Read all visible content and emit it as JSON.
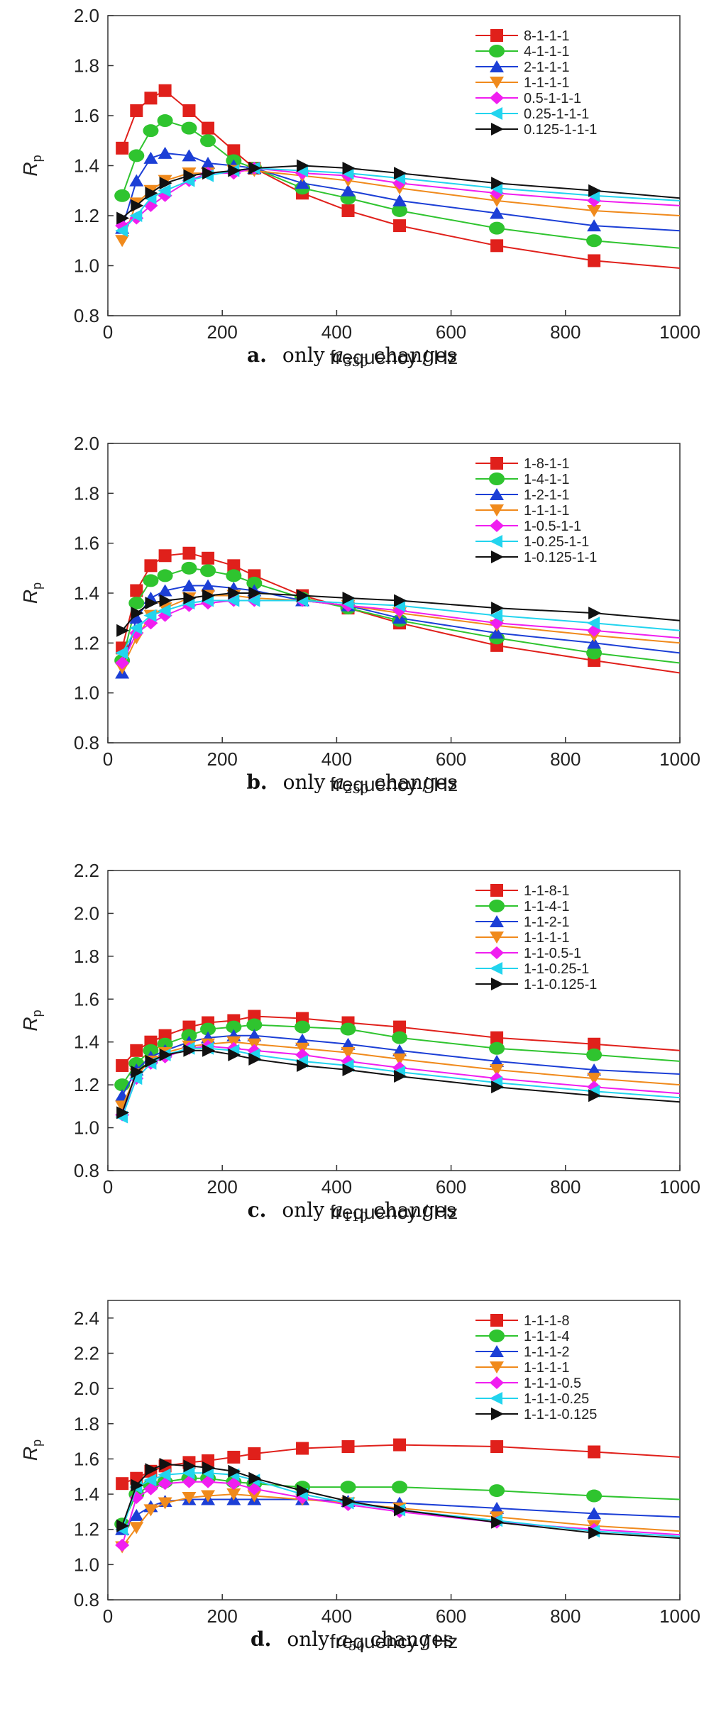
{
  "chart_data": [
    {
      "type": "line",
      "caption": {
        "letter": "a.",
        "prefix": "only",
        "var": "a",
        "sub": "330",
        "suffix": "changes"
      },
      "xlabel": "frequency / Hz",
      "ylabel": {
        "main": "R",
        "sub": "p"
      },
      "xlim": [
        0,
        1000
      ],
      "ylim": [
        0.8,
        2.0
      ],
      "xticks": [
        "0",
        "200",
        "400",
        "600",
        "800",
        "1000"
      ],
      "yticks": [
        "0.8",
        "1.0",
        "1.2",
        "1.4",
        "1.6",
        "1.8",
        "2.0"
      ],
      "grid": false,
      "legend_position": "top-right",
      "x": [
        25,
        50,
        75,
        100,
        142,
        175,
        220,
        256,
        340,
        420,
        510,
        680,
        850,
        1000
      ],
      "series": [
        {
          "name": "8-1-1-1",
          "color": "#e0201b",
          "marker": "square",
          "values": [
            1.47,
            1.62,
            1.67,
            1.7,
            1.62,
            1.55,
            1.46,
            1.39,
            1.29,
            1.22,
            1.16,
            1.08,
            1.02,
            0.99
          ]
        },
        {
          "name": "4-1-1-1",
          "color": "#2fc42f",
          "marker": "circle",
          "values": [
            1.28,
            1.44,
            1.54,
            1.58,
            1.55,
            1.5,
            1.42,
            1.39,
            1.31,
            1.27,
            1.22,
            1.15,
            1.1,
            1.07
          ]
        },
        {
          "name": "2-1-1-1",
          "color": "#1c3fd6",
          "marker": "triangle-up",
          "values": [
            1.15,
            1.34,
            1.43,
            1.45,
            1.44,
            1.41,
            1.4,
            1.39,
            1.33,
            1.3,
            1.26,
            1.21,
            1.16,
            1.14
          ]
        },
        {
          "name": "1-1-1-1",
          "color": "#f08a1c",
          "marker": "triangle-down",
          "values": [
            1.1,
            1.25,
            1.3,
            1.34,
            1.37,
            1.37,
            1.38,
            1.38,
            1.36,
            1.34,
            1.31,
            1.26,
            1.22,
            1.2
          ]
        },
        {
          "name": "0.5-1-1-1",
          "color": "#f01ef0",
          "marker": "diamond",
          "values": [
            1.16,
            1.19,
            1.24,
            1.28,
            1.34,
            1.37,
            1.37,
            1.39,
            1.37,
            1.36,
            1.33,
            1.29,
            1.26,
            1.24
          ]
        },
        {
          "name": "0.25-1-1-1",
          "color": "#22d4ee",
          "marker": "triangle-left",
          "values": [
            1.14,
            1.2,
            1.27,
            1.3,
            1.34,
            1.36,
            1.38,
            1.39,
            1.38,
            1.37,
            1.35,
            1.31,
            1.28,
            1.26
          ]
        },
        {
          "name": "0.125-1-1-1",
          "color": "#111111",
          "marker": "triangle-right",
          "values": [
            1.19,
            1.24,
            1.29,
            1.33,
            1.36,
            1.37,
            1.38,
            1.39,
            1.4,
            1.39,
            1.37,
            1.33,
            1.3,
            1.27
          ]
        }
      ]
    },
    {
      "type": "line",
      "caption": {
        "letter": "b.",
        "prefix": "only",
        "var": "a",
        "sub": "250",
        "suffix": "changes"
      },
      "xlabel": "frequency / Hz",
      "ylabel": {
        "main": "R",
        "sub": "p"
      },
      "xlim": [
        0,
        1000
      ],
      "ylim": [
        0.8,
        2.0
      ],
      "xticks": [
        "0",
        "200",
        "400",
        "600",
        "800",
        "1000"
      ],
      "yticks": [
        "0.8",
        "1.0",
        "1.2",
        "1.4",
        "1.6",
        "1.8",
        "2.0"
      ],
      "grid": false,
      "legend_position": "top-right",
      "x": [
        25,
        50,
        75,
        100,
        142,
        175,
        220,
        256,
        340,
        420,
        510,
        680,
        850,
        1000
      ],
      "series": [
        {
          "name": "1-8-1-1",
          "color": "#e0201b",
          "marker": "square",
          "values": [
            1.18,
            1.41,
            1.51,
            1.55,
            1.56,
            1.54,
            1.51,
            1.47,
            1.39,
            1.34,
            1.28,
            1.19,
            1.13,
            1.08
          ]
        },
        {
          "name": "1-4-1-1",
          "color": "#2fc42f",
          "marker": "circle",
          "values": [
            1.13,
            1.36,
            1.45,
            1.47,
            1.5,
            1.49,
            1.47,
            1.44,
            1.38,
            1.34,
            1.29,
            1.22,
            1.16,
            1.12
          ]
        },
        {
          "name": "1-2-1-1",
          "color": "#1c3fd6",
          "marker": "triangle-up",
          "values": [
            1.08,
            1.3,
            1.38,
            1.41,
            1.43,
            1.43,
            1.42,
            1.41,
            1.37,
            1.35,
            1.3,
            1.24,
            1.2,
            1.16
          ]
        },
        {
          "name": "1-1-1-1",
          "color": "#f08a1c",
          "marker": "triangle-down",
          "values": [
            1.1,
            1.22,
            1.31,
            1.34,
            1.38,
            1.39,
            1.39,
            1.38,
            1.37,
            1.35,
            1.32,
            1.27,
            1.23,
            1.2
          ]
        },
        {
          "name": "1-0.5-1-1",
          "color": "#f01ef0",
          "marker": "diamond",
          "values": [
            1.12,
            1.24,
            1.28,
            1.31,
            1.35,
            1.36,
            1.37,
            1.37,
            1.37,
            1.35,
            1.33,
            1.28,
            1.25,
            1.22
          ]
        },
        {
          "name": "1-0.25-1-1",
          "color": "#22d4ee",
          "marker": "triangle-left",
          "values": [
            1.16,
            1.26,
            1.31,
            1.33,
            1.36,
            1.37,
            1.37,
            1.37,
            1.37,
            1.36,
            1.35,
            1.31,
            1.28,
            1.25
          ]
        },
        {
          "name": "1-0.125-1-1",
          "color": "#111111",
          "marker": "triangle-right",
          "values": [
            1.25,
            1.32,
            1.36,
            1.37,
            1.38,
            1.39,
            1.4,
            1.4,
            1.39,
            1.38,
            1.37,
            1.34,
            1.32,
            1.29
          ]
        }
      ]
    },
    {
      "type": "line",
      "caption": {
        "letter": "c.",
        "prefix": "only",
        "var": "a",
        "sub": "110",
        "suffix": "changes"
      },
      "xlabel": "frequency / Hz",
      "ylabel": {
        "main": "R",
        "sub": "p"
      },
      "xlim": [
        0,
        1000
      ],
      "ylim": [
        0.8,
        2.2
      ],
      "xticks": [
        "0",
        "200",
        "400",
        "600",
        "800",
        "1000"
      ],
      "yticks": [
        "0.8",
        "1.0",
        "1.2",
        "1.4",
        "1.6",
        "1.8",
        "2.0",
        "2.2"
      ],
      "grid": false,
      "legend_position": "top-right",
      "x": [
        25,
        50,
        75,
        100,
        142,
        175,
        220,
        256,
        340,
        420,
        510,
        680,
        850,
        1000
      ],
      "series": [
        {
          "name": "1-1-8-1",
          "color": "#e0201b",
          "marker": "square",
          "values": [
            1.29,
            1.36,
            1.4,
            1.43,
            1.47,
            1.49,
            1.5,
            1.52,
            1.51,
            1.49,
            1.47,
            1.42,
            1.39,
            1.36
          ]
        },
        {
          "name": "1-1-4-1",
          "color": "#2fc42f",
          "marker": "circle",
          "values": [
            1.2,
            1.3,
            1.36,
            1.39,
            1.43,
            1.46,
            1.47,
            1.48,
            1.47,
            1.46,
            1.42,
            1.37,
            1.34,
            1.31
          ]
        },
        {
          "name": "1-1-2-1",
          "color": "#1c3fd6",
          "marker": "triangle-up",
          "values": [
            1.15,
            1.27,
            1.33,
            1.36,
            1.4,
            1.42,
            1.43,
            1.43,
            1.41,
            1.39,
            1.36,
            1.31,
            1.27,
            1.25
          ]
        },
        {
          "name": "1-1-1-1",
          "color": "#f08a1c",
          "marker": "triangle-down",
          "values": [
            1.1,
            1.25,
            1.31,
            1.35,
            1.38,
            1.39,
            1.4,
            1.39,
            1.37,
            1.35,
            1.32,
            1.27,
            1.23,
            1.2
          ]
        },
        {
          "name": "1-1-0.5-1",
          "color": "#f01ef0",
          "marker": "diamond",
          "values": [
            1.06,
            1.23,
            1.3,
            1.33,
            1.37,
            1.38,
            1.37,
            1.36,
            1.34,
            1.31,
            1.28,
            1.23,
            1.19,
            1.16
          ]
        },
        {
          "name": "1-1-0.25-1",
          "color": "#22d4ee",
          "marker": "triangle-left",
          "values": [
            1.05,
            1.23,
            1.3,
            1.34,
            1.37,
            1.37,
            1.36,
            1.34,
            1.31,
            1.29,
            1.26,
            1.21,
            1.17,
            1.14
          ]
        },
        {
          "name": "1-1-0.125-1",
          "color": "#111111",
          "marker": "triangle-right",
          "values": [
            1.07,
            1.26,
            1.31,
            1.34,
            1.36,
            1.36,
            1.34,
            1.32,
            1.29,
            1.27,
            1.24,
            1.19,
            1.15,
            1.12
          ]
        }
      ]
    },
    {
      "type": "line",
      "caption": {
        "letter": "d.",
        "prefix": "only",
        "var": "a",
        "sub": "50",
        "suffix": "changes"
      },
      "xlabel": "frequency / Hz",
      "ylabel": {
        "main": "R",
        "sub": "p"
      },
      "xlim": [
        0,
        1000
      ],
      "ylim": [
        0.8,
        2.5
      ],
      "xticks": [
        "0",
        "200",
        "400",
        "600",
        "800",
        "1000"
      ],
      "yticks": [
        "0.8",
        "1.0",
        "1.2",
        "1.4",
        "1.6",
        "1.8",
        "2.0",
        "2.2",
        "2.4"
      ],
      "grid": false,
      "legend_position": "top-right",
      "x": [
        25,
        50,
        75,
        100,
        142,
        175,
        220,
        256,
        340,
        420,
        510,
        680,
        850,
        1000
      ],
      "series": [
        {
          "name": "1-1-1-8",
          "color": "#e0201b",
          "marker": "square",
          "values": [
            1.46,
            1.49,
            1.53,
            1.56,
            1.58,
            1.59,
            1.61,
            1.63,
            1.66,
            1.67,
            1.68,
            1.67,
            1.64,
            1.61
          ]
        },
        {
          "name": "1-1-1-4",
          "color": "#2fc42f",
          "marker": "circle",
          "values": [
            1.23,
            1.4,
            1.45,
            1.47,
            1.49,
            1.49,
            1.47,
            1.46,
            1.44,
            1.44,
            1.44,
            1.42,
            1.39,
            1.37
          ]
        },
        {
          "name": "1-1-1-2",
          "color": "#1c3fd6",
          "marker": "triangle-up",
          "values": [
            1.2,
            1.28,
            1.33,
            1.36,
            1.37,
            1.37,
            1.37,
            1.37,
            1.37,
            1.36,
            1.35,
            1.32,
            1.29,
            1.27
          ]
        },
        {
          "name": "1-1-1-1",
          "color": "#f08a1c",
          "marker": "triangle-down",
          "values": [
            1.1,
            1.21,
            1.31,
            1.35,
            1.38,
            1.39,
            1.4,
            1.39,
            1.37,
            1.35,
            1.32,
            1.27,
            1.22,
            1.19
          ]
        },
        {
          "name": "1-1-1-0.5",
          "color": "#f01ef0",
          "marker": "diamond",
          "values": [
            1.11,
            1.38,
            1.43,
            1.46,
            1.47,
            1.47,
            1.46,
            1.43,
            1.38,
            1.34,
            1.3,
            1.24,
            1.2,
            1.17
          ]
        },
        {
          "name": "1-1-1-0.25",
          "color": "#22d4ee",
          "marker": "triangle-left",
          "values": [
            1.2,
            1.44,
            1.48,
            1.51,
            1.52,
            1.52,
            1.51,
            1.48,
            1.4,
            1.35,
            1.31,
            1.25,
            1.19,
            1.16
          ]
        },
        {
          "name": "1-1-1-0.125",
          "color": "#111111",
          "marker": "triangle-right",
          "values": [
            1.22,
            1.45,
            1.54,
            1.57,
            1.56,
            1.55,
            1.53,
            1.49,
            1.42,
            1.36,
            1.31,
            1.24,
            1.18,
            1.15
          ]
        }
      ]
    }
  ]
}
